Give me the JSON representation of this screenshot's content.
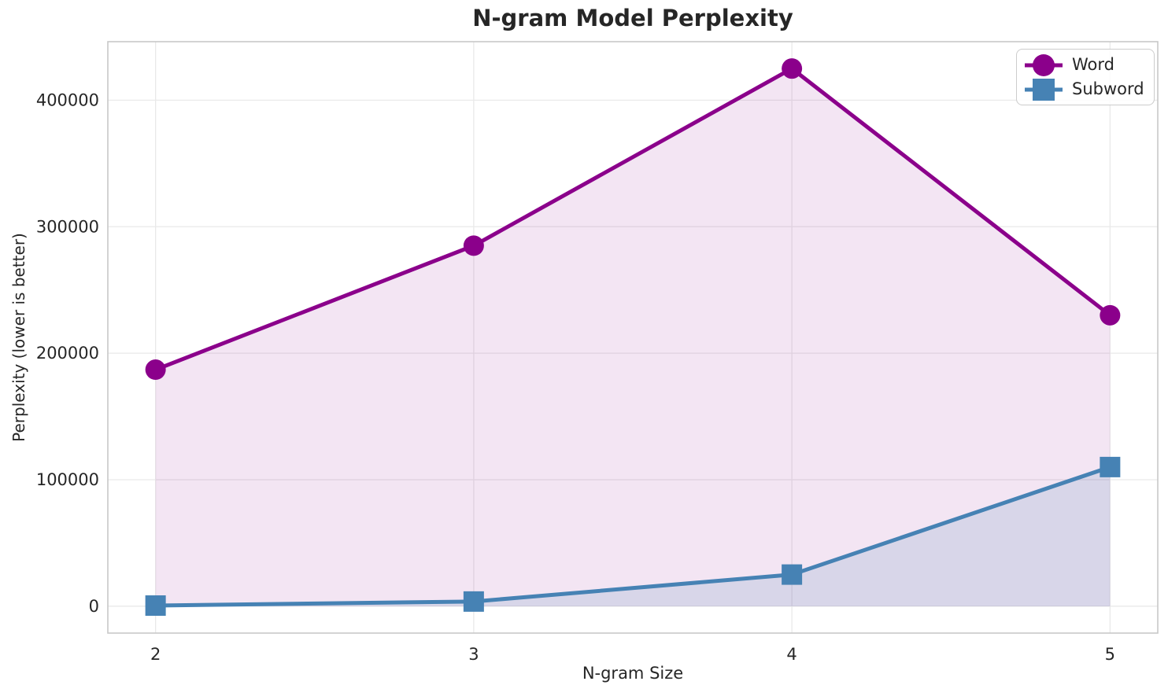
{
  "chart_data": {
    "type": "line",
    "title": "N-gram Model Perplexity",
    "xlabel": "N-gram Size",
    "ylabel": "Perplexity (lower is better)",
    "x": [
      2,
      3,
      4,
      5
    ],
    "series": [
      {
        "name": "Word",
        "marker": "circle",
        "color": "#8B008B",
        "fill_opacity": 0.1,
        "values": [
          187000,
          285000,
          425000,
          230000
        ]
      },
      {
        "name": "Subword",
        "marker": "square",
        "color": "#4682B4",
        "fill_opacity": 0.15,
        "values": [
          500,
          3700,
          25000,
          110000
        ]
      }
    ],
    "xticks": [
      2,
      3,
      4,
      5
    ],
    "yticks": [
      0,
      100000,
      200000,
      300000,
      400000
    ],
    "xlim": [
      1.85,
      5.15
    ],
    "ylim": [
      -21250,
      446250
    ],
    "grid": true,
    "area_fill_to": 0,
    "legend_position": "upper right",
    "legend_labels": [
      "Word",
      "Subword"
    ]
  },
  "style_colors": {
    "grid": "#e9e9e9",
    "spine": "#c8c8c8",
    "text": "#262626",
    "legend_border": "#cccccc",
    "background": "#ffffff"
  }
}
